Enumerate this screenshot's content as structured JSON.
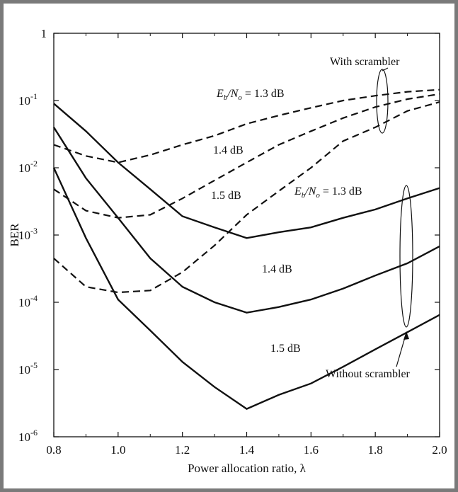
{
  "chart_data": {
    "type": "line",
    "xlabel": "Power allocation ratio, λ",
    "ylabel": "BER",
    "xlim": [
      0.8,
      2.0
    ],
    "ylim": [
      1e-06,
      1
    ],
    "yscale": "log",
    "grid": false,
    "x_ticks": [
      "0.8",
      "1.0",
      "1.2",
      "1.4",
      "1.6",
      "1.8",
      "2.0"
    ],
    "y_ticks": [
      {
        "base": "10",
        "exp": "-6"
      },
      {
        "base": "10",
        "exp": "-5"
      },
      {
        "base": "10",
        "exp": "-4"
      },
      {
        "base": "10",
        "exp": "-3"
      },
      {
        "base": "10",
        "exp": "-2"
      },
      {
        "base": "10",
        "exp": "-1"
      },
      {
        "base": "1",
        "exp": ""
      }
    ],
    "series": [
      {
        "group": "with",
        "style": "dashed",
        "ebno": "1.3",
        "x": [
          0.8,
          0.9,
          1.0,
          1.1,
          1.2,
          1.3,
          1.4,
          1.5,
          1.6,
          1.7,
          1.8,
          1.9,
          2.0
        ],
        "y": [
          0.022,
          0.015,
          0.012,
          0.0155,
          0.022,
          0.03,
          0.045,
          0.06,
          0.078,
          0.1,
          0.118,
          0.135,
          0.145
        ]
      },
      {
        "group": "with",
        "style": "dashed",
        "ebno": "1.4",
        "x": [
          0.8,
          0.9,
          1.0,
          1.1,
          1.2,
          1.3,
          1.4,
          1.5,
          1.6,
          1.7,
          1.8,
          1.9,
          2.0
        ],
        "y": [
          0.0048,
          0.0023,
          0.0018,
          0.002,
          0.0035,
          0.0065,
          0.012,
          0.022,
          0.035,
          0.055,
          0.08,
          0.105,
          0.125
        ]
      },
      {
        "group": "with",
        "style": "dashed",
        "ebno": "1.5",
        "x": [
          0.8,
          0.9,
          1.0,
          1.1,
          1.2,
          1.3,
          1.4,
          1.5,
          1.6,
          1.7,
          1.8,
          1.9,
          2.0
        ],
        "y": [
          0.00045,
          0.00017,
          0.00014,
          0.00015,
          0.00028,
          0.0007,
          0.002,
          0.0045,
          0.01,
          0.025,
          0.04,
          0.07,
          0.095
        ]
      },
      {
        "group": "without",
        "style": "solid",
        "ebno": "1.3",
        "x": [
          0.8,
          0.9,
          1.0,
          1.1,
          1.2,
          1.3,
          1.4,
          1.5,
          1.6,
          1.7,
          1.8,
          1.9,
          2.0
        ],
        "y": [
          0.09,
          0.035,
          0.012,
          0.0048,
          0.0019,
          0.0013,
          0.0009,
          0.0011,
          0.0013,
          0.0018,
          0.0024,
          0.0035,
          0.005
        ]
      },
      {
        "group": "without",
        "style": "solid",
        "ebno": "1.4",
        "x": [
          0.8,
          0.9,
          1.0,
          1.1,
          1.2,
          1.3,
          1.4,
          1.5,
          1.6,
          1.7,
          1.8,
          1.9,
          2.0
        ],
        "y": [
          0.04,
          0.007,
          0.0018,
          0.00045,
          0.00017,
          0.0001,
          7e-05,
          8.5e-05,
          0.00011,
          0.00016,
          0.00025,
          0.00038,
          0.00068
        ]
      },
      {
        "group": "without",
        "style": "solid",
        "ebno": "1.5",
        "x": [
          0.8,
          0.9,
          1.0,
          1.1,
          1.2,
          1.3,
          1.4,
          1.5,
          1.6,
          1.7,
          1.8,
          1.9,
          2.0
        ],
        "y": [
          0.01,
          0.0009,
          0.00011,
          3.8e-05,
          1.3e-05,
          5.5e-06,
          2.6e-06,
          4.2e-06,
          6.2e-06,
          1.1e-05,
          2e-05,
          3.6e-05,
          6.5e-05
        ]
      }
    ],
    "annotations": {
      "with_scrambler": "With scrambler",
      "without_scrambler": "Without scrambler",
      "ebno_prefix_E": "E",
      "ebno_sub_b": "b",
      "ebno_slash_N": "/N",
      "ebno_sub_o": "o",
      "ebno_eq_with": " = 1.3 dB",
      "ebno_eq_without": " = 1.3 dB",
      "with_14": "1.4 dB",
      "with_15": "1.5 dB",
      "without_14": "1.4 dB",
      "without_15": "1.5 dB"
    }
  }
}
